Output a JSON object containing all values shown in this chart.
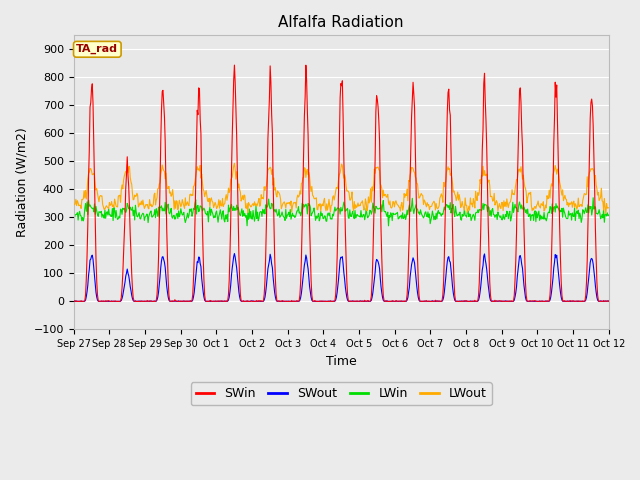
{
  "title": "Alfalfa Radiation",
  "xlabel": "Time",
  "ylabel": "Radiation (W/m2)",
  "ylim": [
    -100,
    950
  ],
  "yticks": [
    -100,
    0,
    100,
    200,
    300,
    400,
    500,
    600,
    700,
    800,
    900
  ],
  "background_color": "#ebebeb",
  "plot_bg_color": "#e8e8e8",
  "grid_color": "#ffffff",
  "annotation_text": "TA_rad",
  "annotation_bg": "#ffffcc",
  "annotation_border": "#cc9900",
  "annotation_text_color": "#990000",
  "legend_entries": [
    "SWin",
    "SWout",
    "LWin",
    "LWout"
  ],
  "line_colors": [
    "#ff0000",
    "#0000ff",
    "#00dd00",
    "#ffaa00"
  ],
  "n_days": 15,
  "swin_peaks": [
    800,
    470,
    780,
    795,
    830,
    800,
    790,
    780,
    760,
    770,
    760,
    760,
    755,
    750,
    730
  ],
  "swout_peaks": [
    170,
    105,
    165,
    165,
    168,
    160,
    155,
    158,
    155,
    153,
    160,
    158,
    162,
    160,
    155
  ],
  "lwin_base": 310,
  "lwout_base": 375
}
